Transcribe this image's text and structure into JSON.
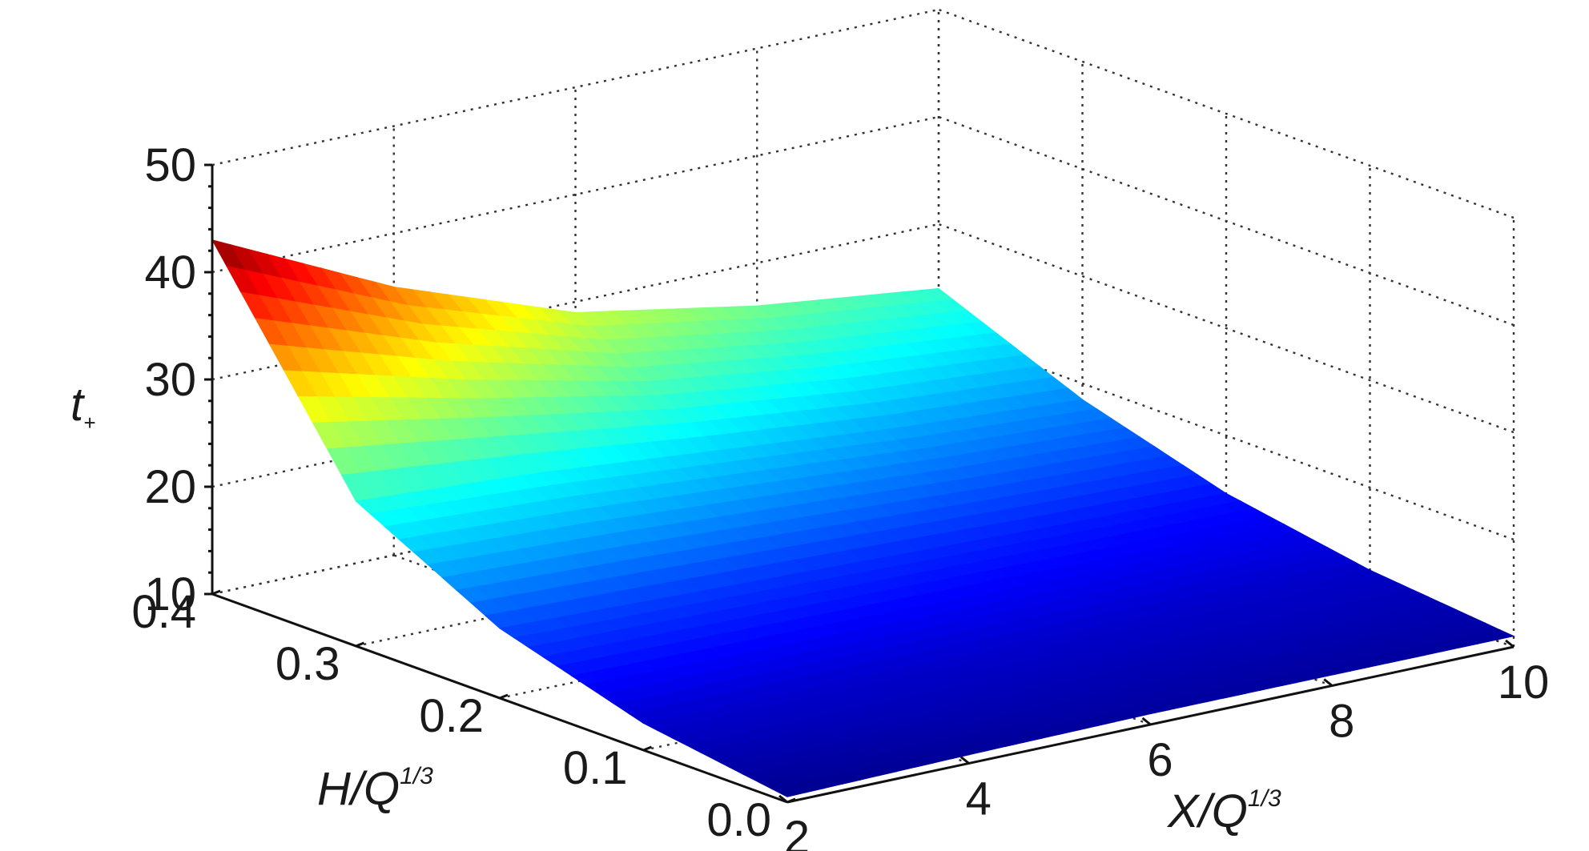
{
  "chart_data": {
    "type": "surface",
    "x_axis": {
      "label": "X/Q",
      "label_sup": "1/3",
      "range": [
        2,
        10
      ],
      "ticks": [
        2,
        4,
        6,
        8,
        10
      ],
      "tick_labels": [
        "2",
        "4",
        "6",
        "8",
        "10"
      ]
    },
    "y_axis": {
      "label": "H/Q",
      "label_sup": "1/3",
      "range": [
        0.0,
        0.4
      ],
      "ticks": [
        0.0,
        0.1,
        0.2,
        0.3,
        0.4
      ],
      "tick_labels": [
        "0.0",
        "0.1",
        "0.2",
        "0.3",
        "0.4"
      ]
    },
    "z_axis": {
      "label": "t",
      "label_sub": "+",
      "range": [
        10,
        50
      ],
      "ticks": [
        10,
        20,
        30,
        40,
        50
      ],
      "tick_labels": [
        "10",
        "20",
        "30",
        "40",
        "50"
      ]
    },
    "grid": true,
    "colormap": "jet",
    "color_range": [
      10,
      43
    ],
    "surface": {
      "x": [
        2,
        4,
        6,
        8,
        10
      ],
      "y": [
        0.0,
        0.1,
        0.2,
        0.3,
        0.4
      ],
      "z": [
        [
          10.5,
          12.5,
          16.5,
          23.5,
          43.0
        ],
        [
          10.8,
          12.5,
          16.0,
          22.5,
          35.0
        ],
        [
          11.0,
          12.5,
          15.5,
          21.0,
          29.0
        ],
        [
          11.0,
          12.4,
          15.0,
          19.5,
          26.0
        ],
        [
          11.0,
          12.3,
          14.6,
          18.5,
          24.0
        ]
      ]
    }
  }
}
